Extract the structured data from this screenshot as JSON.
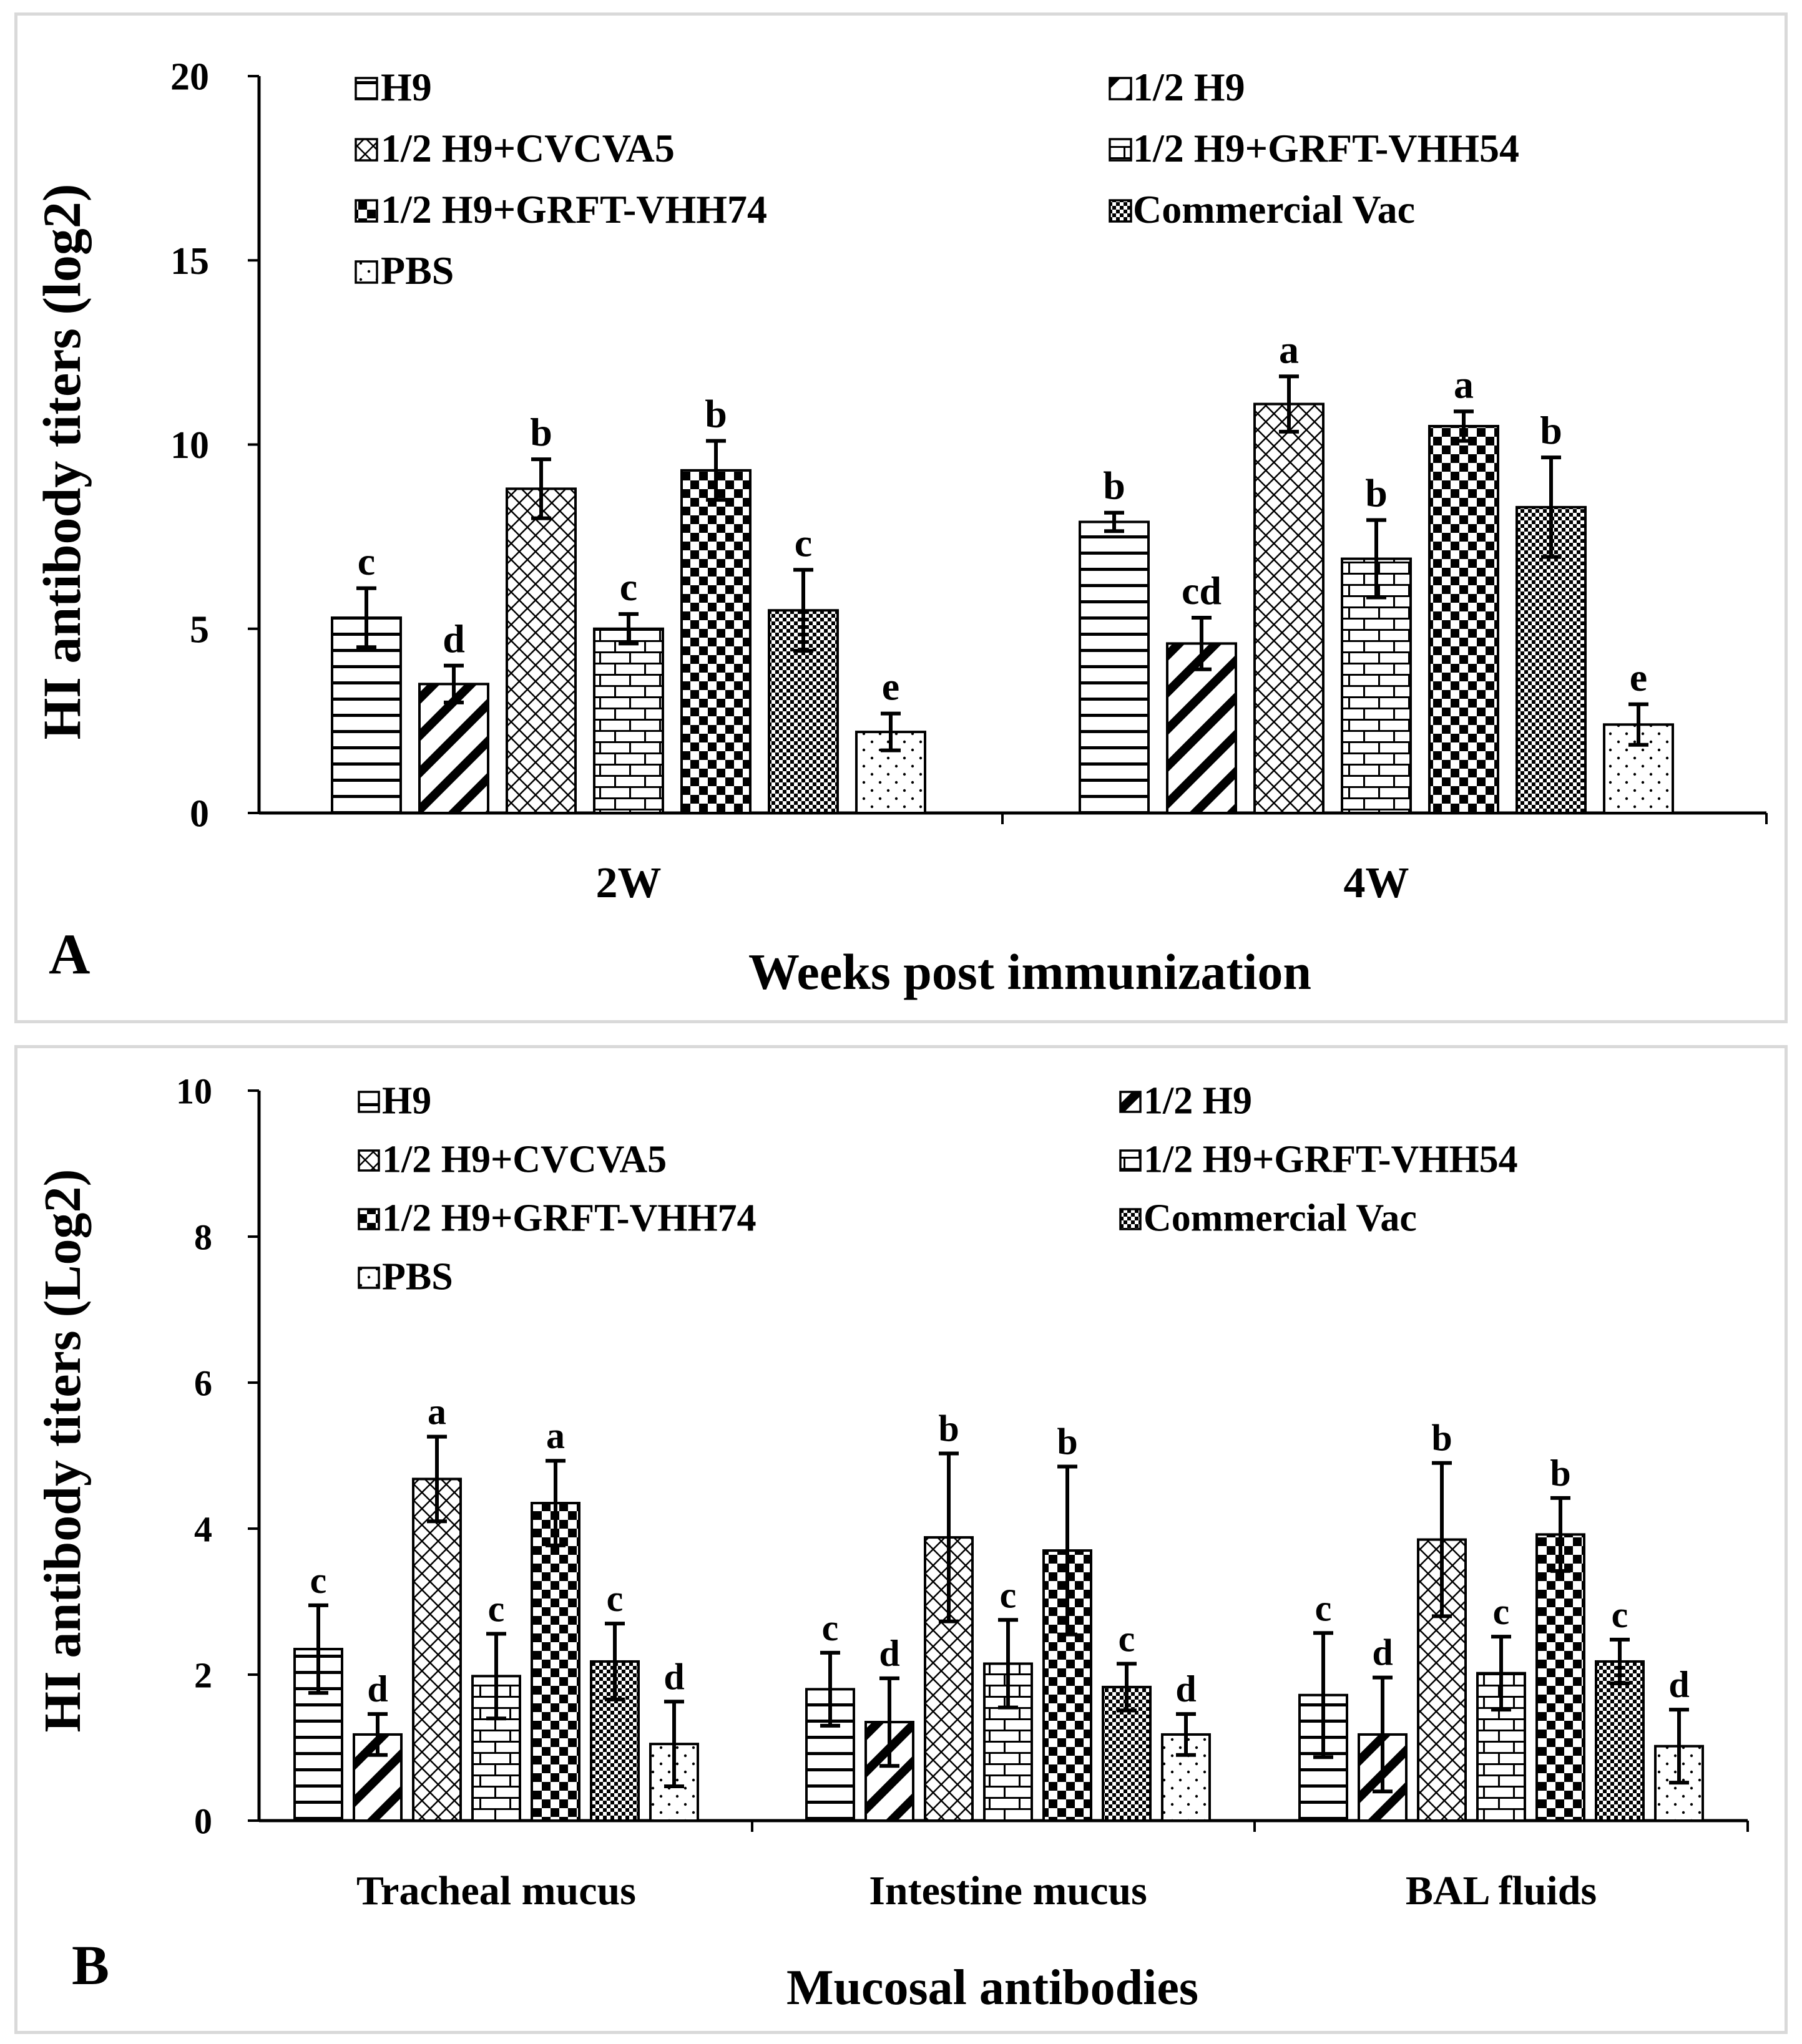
{
  "chart_data": [
    {
      "type": "bar",
      "panel_label": "A",
      "title": "",
      "xlabel": "Weeks post immunization",
      "ylabel": "HI antibody titers (log2)",
      "ylim": [
        0,
        20
      ],
      "yticks": [
        0,
        5,
        10,
        15,
        20
      ],
      "grid": false,
      "legend_position": "top",
      "categories": [
        "2W",
        "4W"
      ],
      "series": [
        {
          "name": "H9",
          "pattern": "hlines",
          "values": [
            5.3,
            7.9
          ],
          "errors": [
            0.8,
            0.25
          ],
          "letters": [
            "c",
            "b"
          ]
        },
        {
          "name": "1/2 H9",
          "pattern": "diag",
          "values": [
            3.5,
            4.6
          ],
          "errors": [
            0.5,
            0.7
          ],
          "letters": [
            "d",
            "cd"
          ]
        },
        {
          "name": "1/2 H9+CVCVA5",
          "pattern": "crosshatch",
          "values": [
            8.8,
            11.1
          ],
          "errors": [
            0.8,
            0.75
          ],
          "letters": [
            "b",
            "a"
          ]
        },
        {
          "name": "1/2 H9+GRFT-VHH54",
          "pattern": "brick",
          "values": [
            5.0,
            6.9
          ],
          "errors": [
            0.4,
            1.05
          ],
          "letters": [
            "c",
            "b"
          ]
        },
        {
          "name": "1/2 H9+GRFT-VHH74",
          "pattern": "checker",
          "values": [
            9.3,
            10.5
          ],
          "errors": [
            0.8,
            0.4
          ],
          "letters": [
            "b",
            "a"
          ]
        },
        {
          "name": "Commercial Vac",
          "pattern": "finecheck",
          "values": [
            5.5,
            8.3
          ],
          "errors": [
            1.1,
            1.35
          ],
          "letters": [
            "c",
            "b"
          ]
        },
        {
          "name": "PBS",
          "pattern": "dots",
          "values": [
            2.2,
            2.4
          ],
          "errors": [
            0.5,
            0.55
          ],
          "letters": [
            "e",
            "e"
          ]
        }
      ]
    },
    {
      "type": "bar",
      "panel_label": "B",
      "title": "",
      "xlabel": "Mucosal antibodies",
      "ylabel": "HI antibody titers (Log2)",
      "ylim": [
        0,
        10
      ],
      "yticks": [
        0,
        2,
        4,
        6,
        8,
        10
      ],
      "grid": false,
      "legend_position": "top",
      "categories": [
        "Tracheal mucus",
        "Intestine mucus",
        "BAL fluids"
      ],
      "series": [
        {
          "name": "H9",
          "pattern": "hlines",
          "values": [
            2.35,
            1.8,
            1.72
          ],
          "errors": [
            0.6,
            0.5,
            0.85
          ],
          "letters": [
            "c",
            "c",
            "c"
          ]
        },
        {
          "name": "1/2 H9",
          "pattern": "diag",
          "values": [
            1.18,
            1.35,
            1.18
          ],
          "errors": [
            0.28,
            0.6,
            0.78
          ],
          "letters": [
            "d",
            "d",
            "d"
          ]
        },
        {
          "name": "1/2 H9+CVCVA5",
          "pattern": "crosshatch",
          "values": [
            4.68,
            3.88,
            3.85
          ],
          "errors": [
            0.58,
            1.15,
            1.05
          ],
          "letters": [
            "a",
            "b",
            "b"
          ]
        },
        {
          "name": "1/2 H9+GRFT-VHH54",
          "pattern": "brick",
          "values": [
            1.98,
            2.15,
            2.02
          ],
          "errors": [
            0.58,
            0.6,
            0.5
          ],
          "letters": [
            "c",
            "c",
            "c"
          ]
        },
        {
          "name": "1/2 H9+GRFT-VHH74",
          "pattern": "checker",
          "values": [
            4.35,
            3.7,
            3.92
          ],
          "errors": [
            0.58,
            1.15,
            0.5
          ],
          "letters": [
            "a",
            "b",
            "b"
          ]
        },
        {
          "name": "Commercial Vac",
          "pattern": "finecheck",
          "values": [
            2.18,
            1.83,
            2.18
          ],
          "errors": [
            0.52,
            0.32,
            0.3
          ],
          "letters": [
            "c",
            "c",
            "c"
          ]
        },
        {
          "name": "PBS",
          "pattern": "dots",
          "values": [
            1.05,
            1.18,
            1.02
          ],
          "errors": [
            0.58,
            0.28,
            0.5
          ],
          "letters": [
            "d",
            "d",
            "d"
          ]
        }
      ]
    }
  ]
}
